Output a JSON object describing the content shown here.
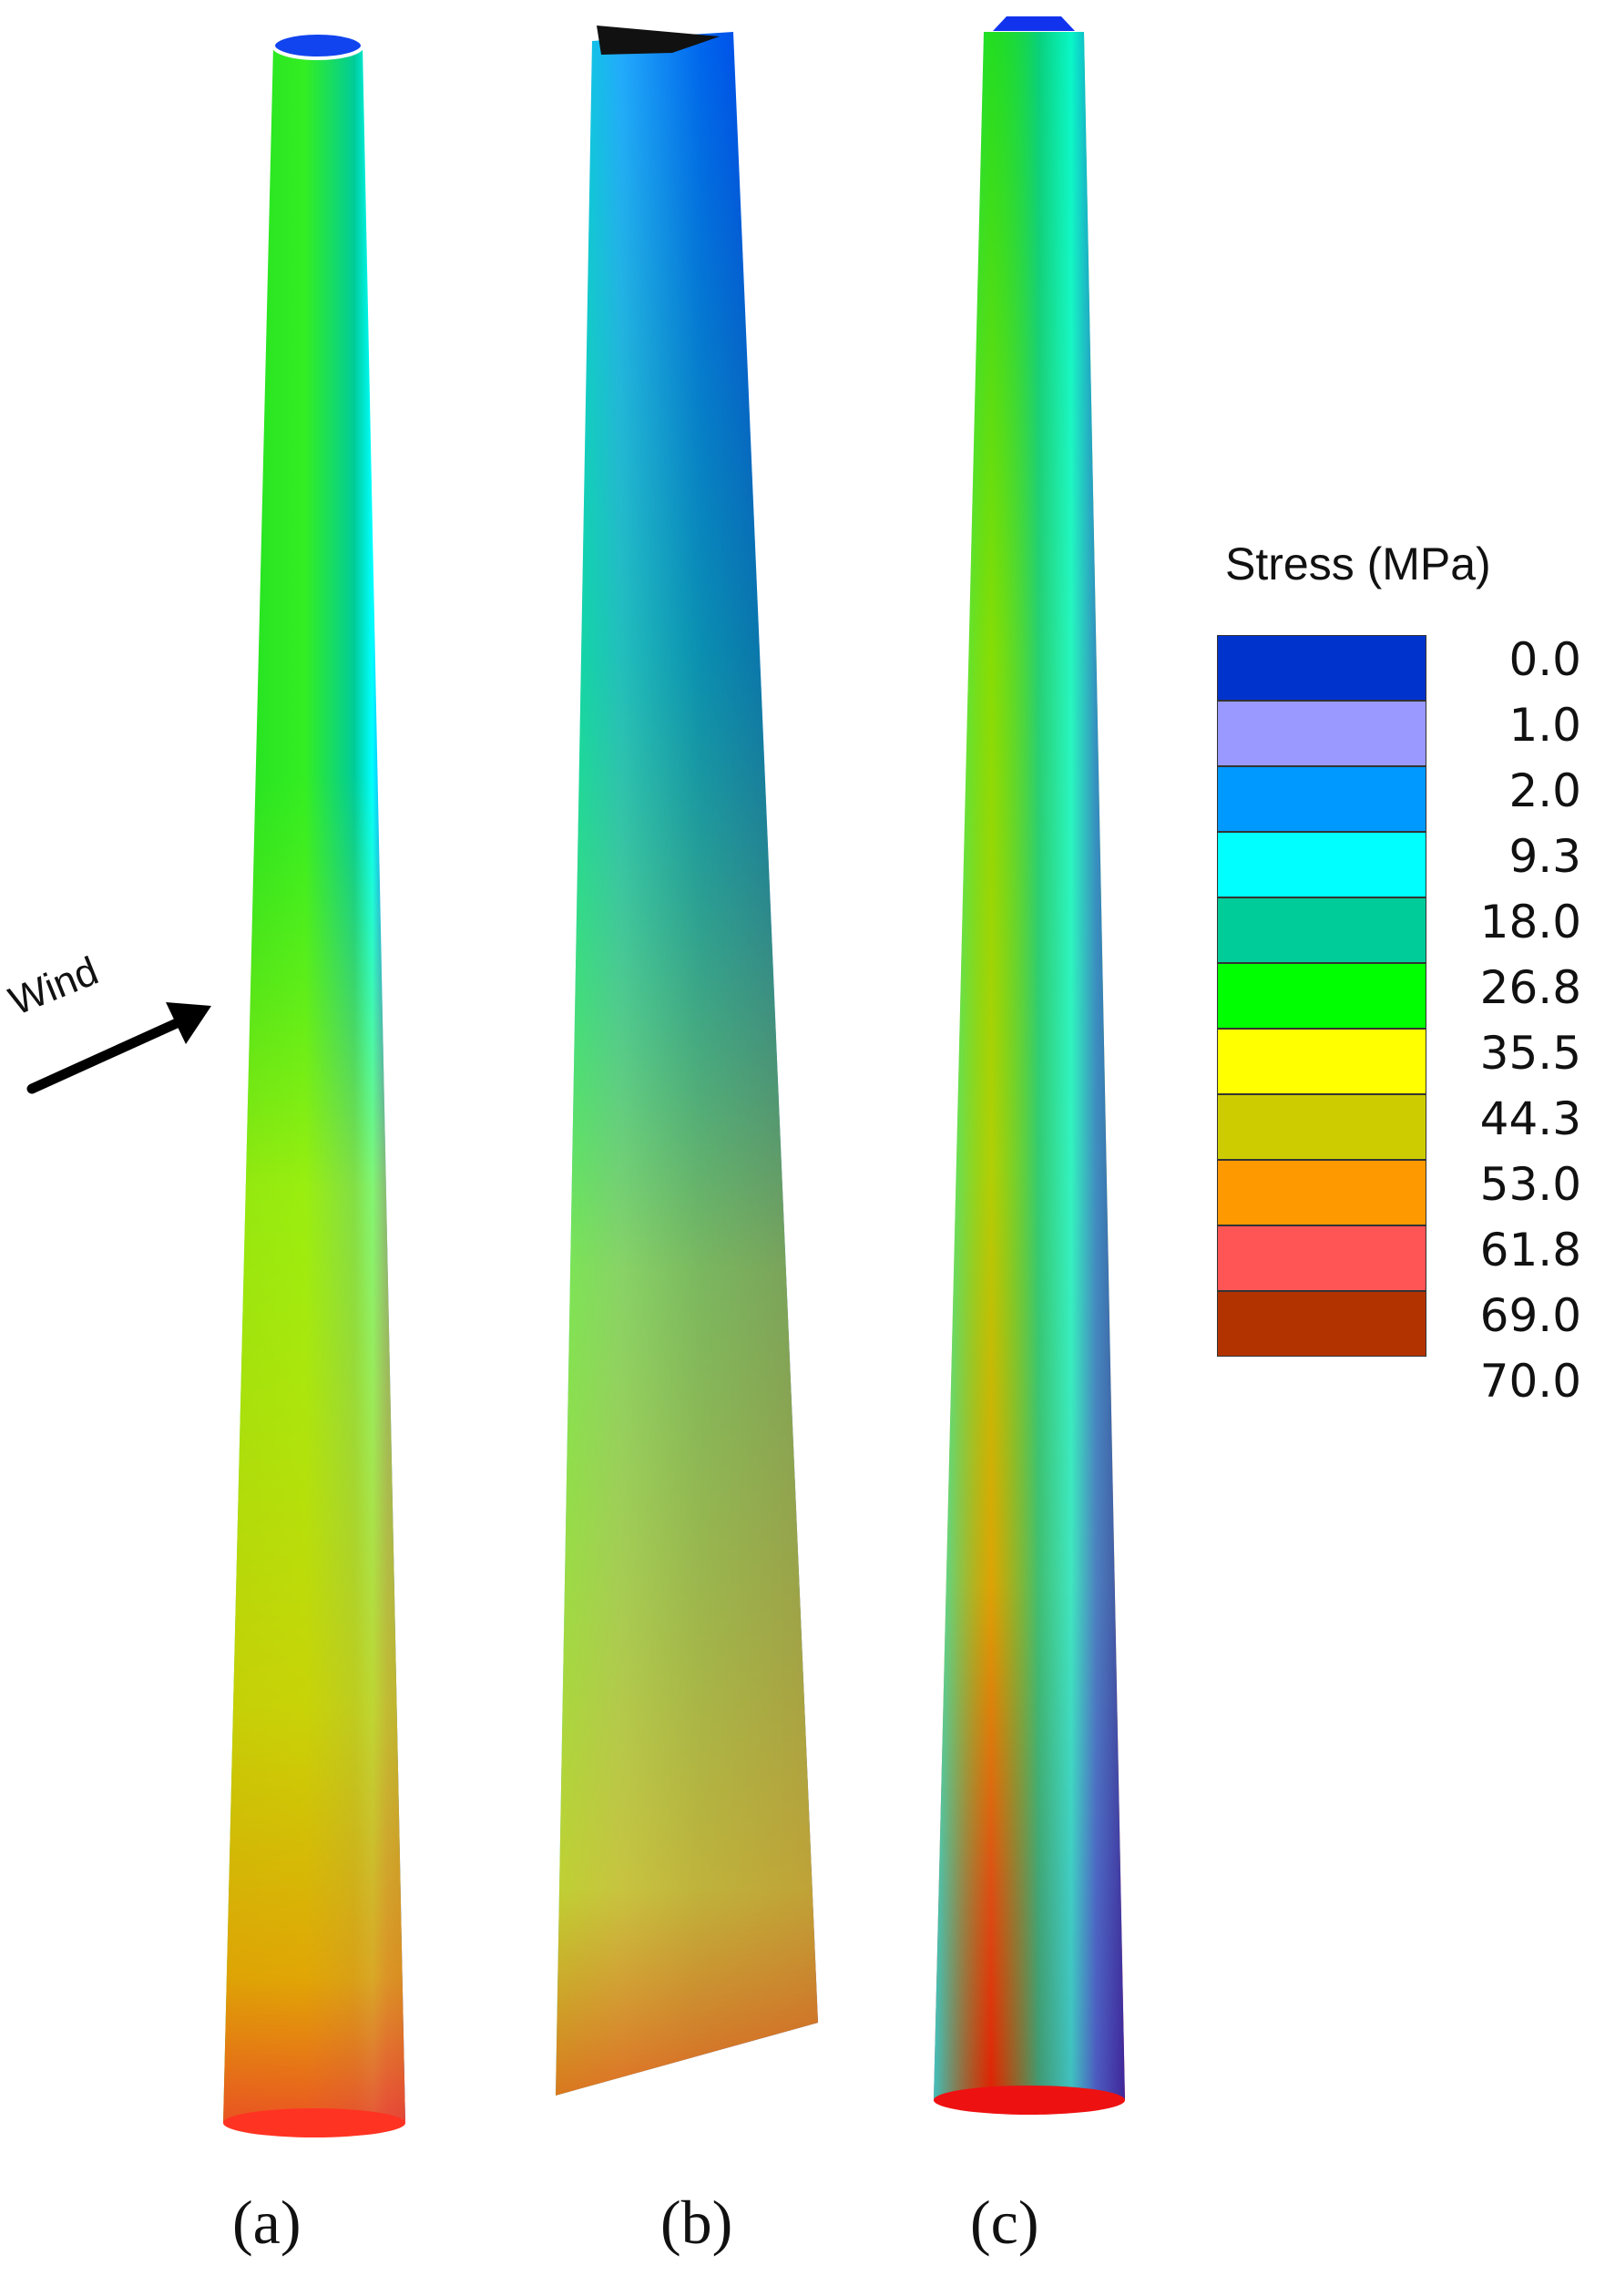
{
  "figure": {
    "panels": [
      {
        "id": "a",
        "label": "(a)"
      },
      {
        "id": "b",
        "label": "(b)"
      },
      {
        "id": "c",
        "label": "(c)"
      }
    ],
    "wind_label": "Wind"
  },
  "legend": {
    "title": "Stress (MPa)",
    "levels": [
      "0.0",
      "1.0",
      "2.0",
      "9.3",
      "18.0",
      "26.8",
      "35.5",
      "44.3",
      "53.0",
      "61.8",
      "69.0",
      "70.0"
    ],
    "colors": [
      "#0033cc",
      "#9999ff",
      "#0099ff",
      "#00ffff",
      "#00cc99",
      "#00ff00",
      "#ffff00",
      "#cccc00",
      "#ff9900",
      "#ff5555",
      "#b33300"
    ]
  }
}
